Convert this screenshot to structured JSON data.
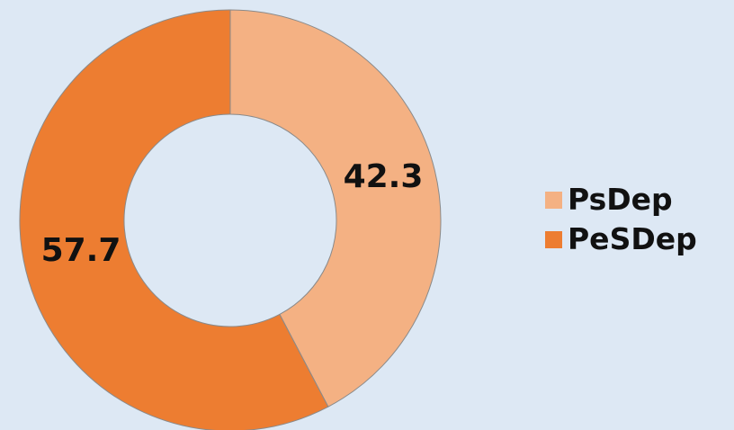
{
  "chart_data": {
    "type": "pie",
    "donut": true,
    "series": [
      {
        "name": "PsDep",
        "value": 42.3,
        "label": "42.3",
        "color": "#f4b183"
      },
      {
        "name": "PeSDep",
        "value": 57.7,
        "label": "57.7",
        "color": "#ed7d31"
      }
    ],
    "start": "12 o'clock",
    "direction": "clockwise",
    "legend": {
      "position": "right"
    },
    "background": "#dde8f4",
    "border_color": "#8a8a8a"
  }
}
